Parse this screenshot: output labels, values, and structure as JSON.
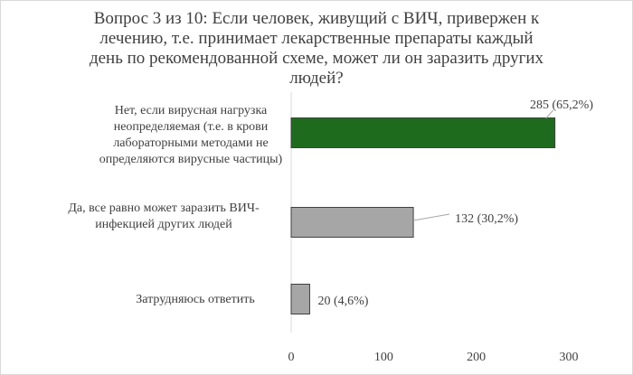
{
  "chart_data": {
    "type": "bar",
    "orientation": "horizontal",
    "title": "Вопрос 3 из 10: Если человек, живущий  с ВИЧ, привержен к  лечению, т.е. принимает лекарственные препараты каждый день по рекомендованной схеме,  может ли он заразить других людей?",
    "categories": [
      "Нет, если вирусная нагрузка неопределяемая (т.е. в крови лабораторными методами не определяются вирусные частицы)",
      "Да, все равно может заразить ВИЧ-инфекцией других людей",
      "Затрудняюсь ответить"
    ],
    "values": [
      285,
      132,
      20
    ],
    "data_labels": [
      "285 (65,2%)",
      "132 (30,2%)",
      "20 (4,6%)"
    ],
    "bar_colors": [
      "#1e6b1e",
      "#a6a6a6",
      "#a6a6a6"
    ],
    "xlim": [
      0,
      300
    ],
    "x_ticks": [
      "0",
      "100",
      "200",
      "300"
    ],
    "grid": false,
    "legend": "none"
  }
}
